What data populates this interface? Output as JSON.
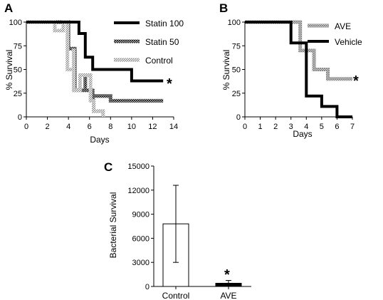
{
  "chart_data": [
    {
      "panel": "A",
      "type": "line",
      "step": true,
      "xlabel": "Days",
      "ylabel": "% Survival",
      "xlim": [
        0,
        14
      ],
      "ylim": [
        0,
        100
      ],
      "xticks": [
        0,
        2,
        4,
        6,
        8,
        10,
        12,
        14
      ],
      "yticks": [
        0,
        25,
        50,
        75,
        100
      ],
      "legend_position": "top-right",
      "annotation": "*",
      "series": [
        {
          "name": "Statin 100",
          "color": "#000000",
          "pattern": "solid",
          "points": [
            [
              0,
              100
            ],
            [
              5,
              100
            ],
            [
              5,
              88
            ],
            [
              5.6,
              88
            ],
            [
              5.6,
              63
            ],
            [
              6.3,
              63
            ],
            [
              6.3,
              50
            ],
            [
              8,
              50
            ],
            [
              8,
              50
            ],
            [
              10,
              50
            ],
            [
              10,
              38
            ],
            [
              13,
              38
            ]
          ]
        },
        {
          "name": "Statin 50",
          "color": "#666666",
          "pattern": "crosshatch",
          "points": [
            [
              0,
              100
            ],
            [
              3,
              100
            ],
            [
              3,
              100
            ],
            [
              4,
              100
            ],
            [
              4,
              72
            ],
            [
              4.6,
              72
            ],
            [
              4.6,
              28
            ],
            [
              5.6,
              28
            ],
            [
              5.6,
              44
            ],
            [
              5.6,
              28
            ],
            [
              6.3,
              28
            ],
            [
              6.3,
              17
            ],
            [
              6.3,
              22
            ],
            [
              8,
              22
            ],
            [
              8,
              17
            ],
            [
              13,
              17
            ]
          ]
        },
        {
          "name": "Control",
          "color": "#8a8a8a",
          "pattern": "diagonal",
          "points": [
            [
              0,
              100
            ],
            [
              2.7,
              100
            ],
            [
              2.7,
              91
            ],
            [
              3.5,
              91
            ],
            [
              3.5,
              100
            ],
            [
              3.9,
              100
            ],
            [
              3.9,
              50
            ],
            [
              4.5,
              50
            ],
            [
              4.5,
              72
            ],
            [
              4.5,
              28
            ],
            [
              5.1,
              28
            ],
            [
              5.1,
              44
            ],
            [
              6.1,
              44
            ],
            [
              6.1,
              17
            ],
            [
              6.4,
              17
            ],
            [
              6.4,
              6
            ],
            [
              7.3,
              6
            ],
            [
              7.3,
              0
            ]
          ]
        }
      ]
    },
    {
      "panel": "B",
      "type": "line",
      "step": true,
      "xlabel": "Days",
      "ylabel": "% Survival",
      "xlim": [
        0,
        7
      ],
      "ylim": [
        0,
        100
      ],
      "xticks": [
        0,
        1,
        2,
        3,
        4,
        5,
        6,
        7
      ],
      "yticks": [
        0,
        25,
        50,
        75,
        100
      ],
      "legend_position": "top-right",
      "annotation": "*",
      "series": [
        {
          "name": "AVE",
          "color": "#888888",
          "pattern": "crosshatch",
          "points": [
            [
              0,
              100
            ],
            [
              3.6,
              100
            ],
            [
              3.6,
              70
            ],
            [
              4.5,
              70
            ],
            [
              4.5,
              50
            ],
            [
              5.4,
              50
            ],
            [
              5.4,
              40
            ],
            [
              7,
              40
            ]
          ]
        },
        {
          "name": "Vehicle",
          "color": "#000000",
          "pattern": "solid",
          "points": [
            [
              0,
              100
            ],
            [
              3,
              100
            ],
            [
              3,
              78
            ],
            [
              4,
              78
            ],
            [
              4,
              22
            ],
            [
              5,
              22
            ],
            [
              5,
              11
            ],
            [
              6,
              11
            ],
            [
              6,
              0
            ],
            [
              7,
              0
            ]
          ]
        }
      ]
    },
    {
      "panel": "C",
      "type": "bar",
      "ylabel": "Bacterial Survival",
      "ylim": [
        0,
        15000
      ],
      "yticks": [
        0,
        3000,
        6000,
        9000,
        12000,
        15000
      ],
      "categories": [
        "Control",
        "AVE"
      ],
      "values": [
        7800,
        400
      ],
      "error": [
        4800,
        350
      ],
      "bar_colors": [
        "#ffffff",
        "#000000"
      ],
      "annotation": "*"
    }
  ]
}
